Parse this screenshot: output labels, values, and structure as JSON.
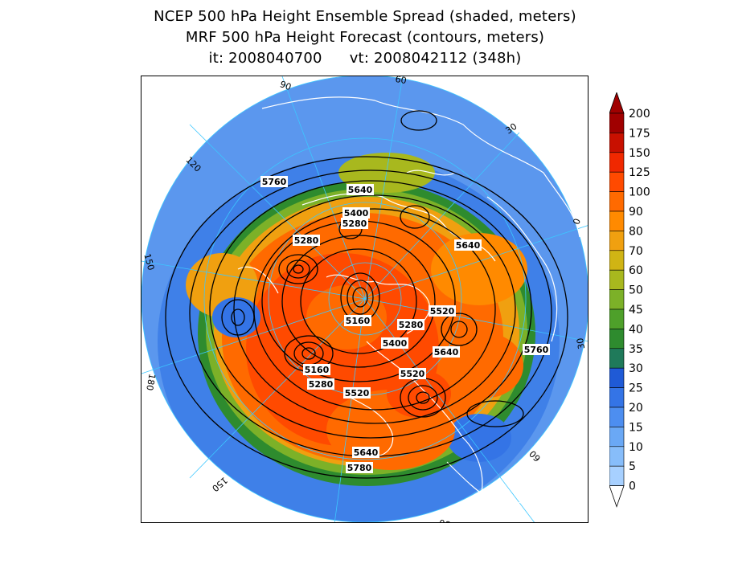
{
  "titles": {
    "line1": "NCEP 500 hPa Height Ensemble Spread (shaded, meters)",
    "line2": "MRF 500 hPa Height Forecast (contours, meters)",
    "init_time": "it: 2008040700",
    "valid_time": "vt: 2008042112 (348h)"
  },
  "map": {
    "projection": "north-polar-stereographic",
    "longitude_labels": [
      "60",
      "30",
      "0",
      "-30",
      "-60",
      "-90",
      "-120",
      "-150",
      "180",
      "150",
      "120",
      "90"
    ],
    "longitude_label_text": [
      "60",
      "30",
      "0",
      "30",
      "60",
      "90",
      "120",
      "150",
      "180",
      "150",
      "120",
      "90"
    ]
  },
  "contour_labels": [
    {
      "text": "5760",
      "id": "c1"
    },
    {
      "text": "5640",
      "id": "c2"
    },
    {
      "text": "5400",
      "id": "c3"
    },
    {
      "text": "5280",
      "id": "c4"
    },
    {
      "text": "5280",
      "id": "c5"
    },
    {
      "text": "5640",
      "id": "c6"
    },
    {
      "text": "5520",
      "id": "c7"
    },
    {
      "text": "5160",
      "id": "c8"
    },
    {
      "text": "5280",
      "id": "c9"
    },
    {
      "text": "5400",
      "id": "c10"
    },
    {
      "text": "5640",
      "id": "c11"
    },
    {
      "text": "5760",
      "id": "c12"
    },
    {
      "text": "5160",
      "id": "c13"
    },
    {
      "text": "5280",
      "id": "c14"
    },
    {
      "text": "5520",
      "id": "c15"
    },
    {
      "text": "5520",
      "id": "c16"
    },
    {
      "text": "5640",
      "id": "c17"
    },
    {
      "text": "5780",
      "id": "c18"
    }
  ],
  "colorbar": {
    "levels": [
      "0",
      "5",
      "10",
      "15",
      "20",
      "25",
      "30",
      "35",
      "40",
      "45",
      "50",
      "60",
      "70",
      "80",
      "90",
      "100",
      "125",
      "150",
      "175",
      "200"
    ],
    "colors": [
      "#c6e2ff",
      "#a7d0ff",
      "#87bdfa",
      "#6aa8f5",
      "#4d8ef0",
      "#3474e6",
      "#1f5ad6",
      "#1f7a5a",
      "#2e8b2e",
      "#4ea02a",
      "#7cb128",
      "#a8b81e",
      "#d0b414",
      "#f0a010",
      "#ff8a00",
      "#ff6a00",
      "#ff4a00",
      "#f02800",
      "#c81000",
      "#a00000"
    ]
  }
}
